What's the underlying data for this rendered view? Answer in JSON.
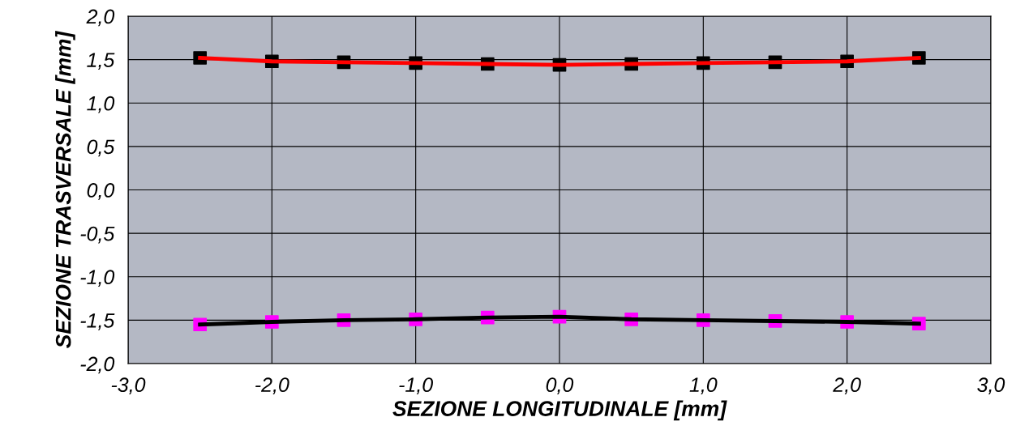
{
  "chart_data": {
    "type": "line",
    "xlabel": "SEZIONE LONGITUDINALE [mm]",
    "ylabel": "SEZIONE TRASVERSALE [mm]",
    "x": [
      -2.5,
      -2.0,
      -1.5,
      -1.0,
      -0.5,
      0.0,
      0.5,
      1.0,
      1.5,
      2.0,
      2.5
    ],
    "series": [
      {
        "color": "#ff0000",
        "colors": [
          "#000000",
          "#000000",
          "#000000",
          "#000000",
          "#000000",
          "#000000",
          "#000000",
          "#000000",
          "#000000",
          "#000000",
          "#000000"
        ],
        "values": [
          1.52,
          1.48,
          1.47,
          1.46,
          1.45,
          1.44,
          1.45,
          1.46,
          1.47,
          1.48,
          1.52
        ]
      },
      {
        "color": "#000000",
        "colors": [
          "#ff00ff",
          "#ff00ff",
          "#ff00ff",
          "#ff00ff",
          "#ff00ff",
          "#ff00ff",
          "#ff00ff",
          "#ff00ff",
          "#ff00ff",
          "#ff00ff",
          "#ff00ff"
        ],
        "values": [
          -1.55,
          -1.52,
          -1.5,
          -1.49,
          -1.47,
          -1.46,
          -1.49,
          -1.5,
          -1.51,
          -1.52,
          -1.54
        ]
      }
    ],
    "xlim": [
      -3.0,
      3.0
    ],
    "ylim": [
      -2.0,
      2.0
    ],
    "xticks": [
      {
        "value": -3,
        "label": "-3,0"
      },
      {
        "value": -2,
        "label": "-2,0"
      },
      {
        "value": -1,
        "label": "-1,0"
      },
      {
        "value": 0,
        "label": "0,0"
      },
      {
        "value": 1,
        "label": "1,0"
      },
      {
        "value": 2,
        "label": "2,0"
      },
      {
        "value": 3,
        "label": "3,0"
      }
    ],
    "yticks": [
      {
        "value": -2,
        "label": "-2,0"
      },
      {
        "value": -1.5,
        "label": "-1,5"
      },
      {
        "value": -1,
        "label": "-1,0"
      },
      {
        "value": -0.5,
        "label": "-0,5"
      },
      {
        "value": 0,
        "label": "0,0"
      },
      {
        "value": 0.5,
        "label": "0,5"
      },
      {
        "value": 1,
        "label": "1,0"
      },
      {
        "value": 1.5,
        "label": "1,5"
      },
      {
        "value": 2,
        "label": "2,0"
      }
    ],
    "grid": true,
    "marker": "square",
    "line_style": "solid",
    "legend": false
  }
}
